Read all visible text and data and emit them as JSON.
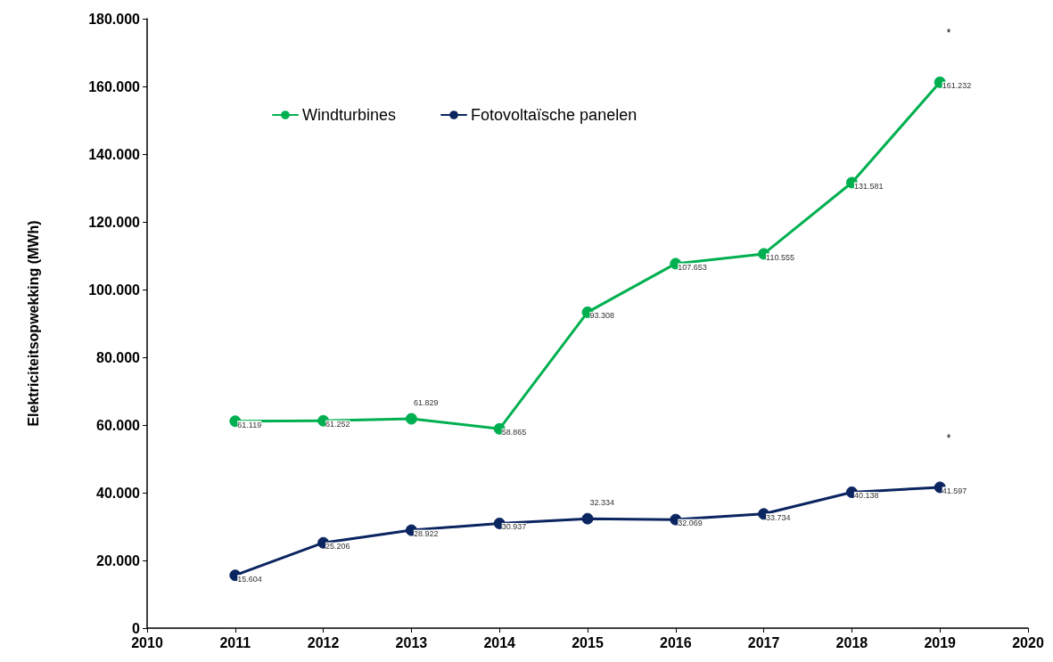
{
  "chart_data": {
    "type": "line",
    "ylabel": "Elektriciteitsopwekking (MWh)",
    "x": [
      2011,
      2012,
      2013,
      2014,
      2015,
      2016,
      2017,
      2018,
      2019
    ],
    "series": [
      {
        "name": "Windturbines",
        "color": "#00b050",
        "values": [
          61119,
          61252,
          61829,
          58865,
          93308,
          107653,
          110555,
          131581,
          161232
        ],
        "value_labels": [
          "61.119",
          "61.252",
          "61.829",
          "58.865",
          "93.308",
          "107.653",
          "110.555",
          "131.581",
          "161.232"
        ]
      },
      {
        "name": "Fotovoltaïsche panelen",
        "color": "#0b2560",
        "values": [
          15604,
          25206,
          28922,
          30937,
          32334,
          32069,
          33734,
          40138,
          41597
        ],
        "value_labels": [
          "15.604",
          "25.206",
          "28.922",
          "30.937",
          "32.334",
          "32.069",
          "33.734",
          "40.138",
          "41.597"
        ]
      }
    ],
    "xlim": [
      2010,
      2020
    ],
    "xticks": [
      2010,
      2011,
      2012,
      2013,
      2014,
      2015,
      2016,
      2017,
      2018,
      2019,
      2020
    ],
    "ylim": [
      0,
      180000
    ],
    "yticks": [
      0,
      {
        "value": 20000,
        "label": "20.000"
      },
      {
        "value": 40000,
        "label": "40.000"
      },
      {
        "value": 60000,
        "label": "60.000"
      },
      {
        "value": 80000,
        "label": "80.000"
      },
      {
        "value": 100000,
        "label": "100.000"
      },
      {
        "value": 120000,
        "label": "120.000"
      },
      {
        "value": 140000,
        "label": "140.000"
      },
      {
        "value": 160000,
        "label": "160.000"
      },
      {
        "value": 180000,
        "label": "180.000"
      }
    ],
    "annotations": [
      "*",
      "*"
    ],
    "grid": false,
    "legend": "top left",
    "marker": "circle",
    "line_style": "solid"
  }
}
